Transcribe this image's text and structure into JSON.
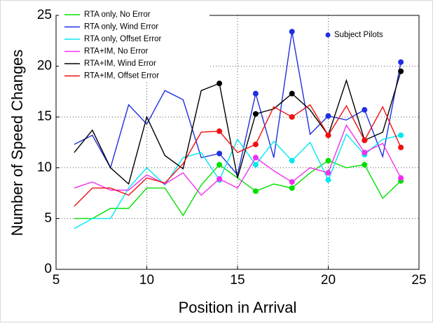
{
  "chart_data": {
    "type": "line",
    "x": [
      6,
      7,
      8,
      9,
      10,
      11,
      12,
      13,
      14,
      15,
      16,
      17,
      18,
      19,
      20,
      21,
      22,
      23,
      24
    ],
    "series": [
      {
        "name": "RTA only, No Error",
        "color": "#00e000",
        "values": [
          5,
          5,
          6,
          6,
          8,
          8,
          5.3,
          8.3,
          10.3,
          9,
          7.7,
          8.4,
          8,
          9.5,
          10.7,
          10,
          10.3,
          7,
          8.7
        ]
      },
      {
        "name": "RTA only, Wind Error",
        "color": "#1f2fe0",
        "values": [
          12.3,
          13.2,
          10,
          16.2,
          14.3,
          17.6,
          16.7,
          11,
          11.4,
          9.3,
          17.3,
          11,
          23.4,
          13.3,
          15.1,
          14.7,
          15.7,
          11.1,
          20.4
        ]
      },
      {
        "name": "RTA only, Offset Error",
        "color": "#00e8f0",
        "values": [
          4,
          5,
          5,
          8,
          10,
          8.3,
          11,
          11.5,
          8.8,
          12.8,
          10.3,
          12.6,
          10.7,
          12.5,
          8.8,
          13.3,
          11.3,
          12.8,
          13.2
        ]
      },
      {
        "name": "RTA+IM, No Error",
        "color": "#f030f0",
        "values": [
          8,
          8.6,
          7.8,
          7.8,
          9.3,
          8.4,
          9.5,
          7.3,
          8.9,
          8,
          11,
          9.7,
          8.6,
          10,
          9.5,
          14.2,
          11.5,
          12.4,
          9
        ]
      },
      {
        "name": "RTA+IM, Wind Error",
        "color": "#000000",
        "values": [
          11.5,
          13.7,
          10,
          8.4,
          15,
          11.2,
          9.9,
          17.6,
          18.3,
          9,
          15.3,
          15.8,
          17.3,
          15.7,
          13.2,
          18.6,
          12.7,
          13.5,
          19.5
        ]
      },
      {
        "name": "RTA+IM, Offset Error",
        "color": "#f01010",
        "values": [
          6.2,
          8,
          8,
          7.3,
          9,
          8.5,
          10.4,
          13.5,
          13.6,
          11.5,
          12.3,
          16,
          15,
          16.2,
          13.2,
          16.1,
          12.7,
          16,
          12
        ]
      }
    ],
    "marker_x": [
      14,
      16,
      18,
      20,
      22,
      24
    ],
    "annotation": "Subject Pilots",
    "annotation_color": "#1f2fe0",
    "x_label": "Position in Arrival",
    "y_label": "Number of Speed Changes",
    "xlim": [
      5,
      25
    ],
    "xticks": [
      5,
      10,
      15,
      20,
      25
    ],
    "ylim": [
      0,
      25
    ],
    "yticks": [
      0,
      5,
      10,
      15,
      20,
      25
    ],
    "grid": true
  }
}
